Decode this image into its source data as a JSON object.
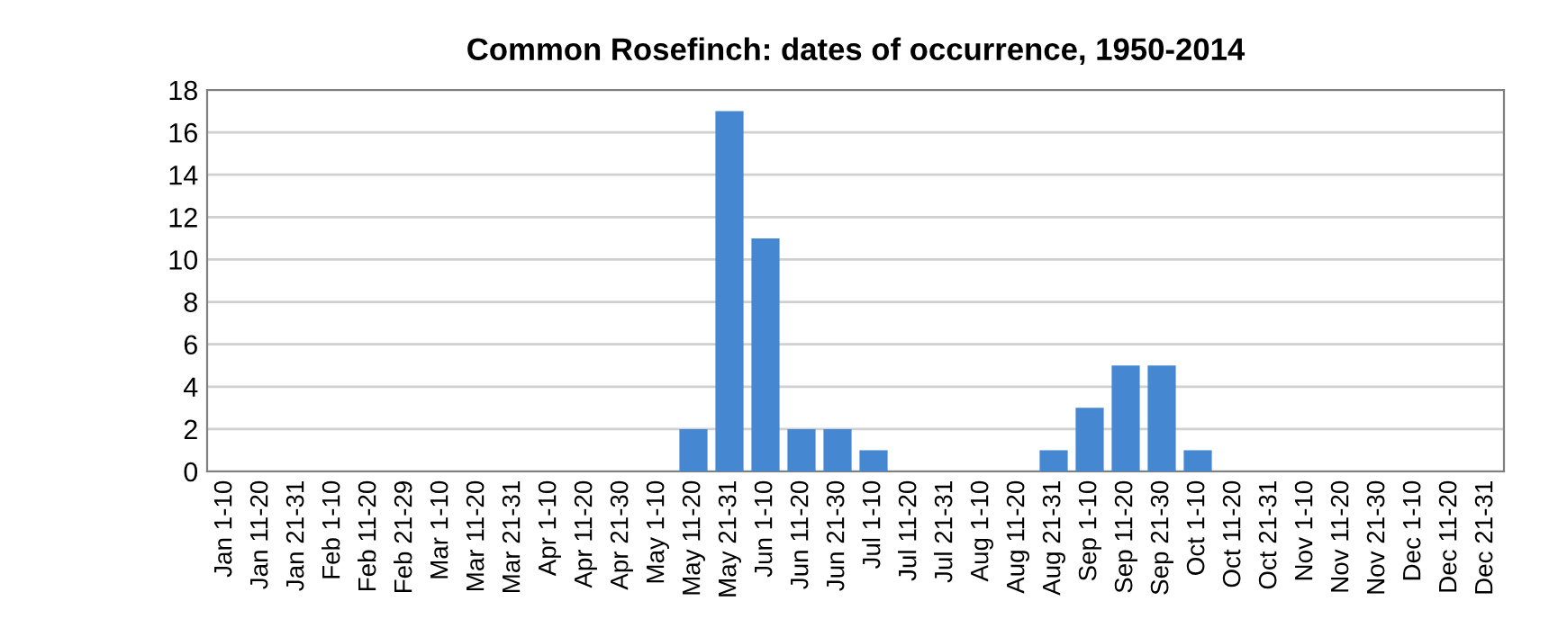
{
  "chart_data": {
    "type": "bar",
    "title": "Common Rosefinch: dates of occurrence, 1950-2014",
    "categories": [
      "Jan 1-10",
      "Jan 11-20",
      "Jan 21-31",
      "Feb 1-10",
      "Feb 11-20",
      "Feb 21-29",
      "Mar 1-10",
      "Mar 11-20",
      "Mar 21-31",
      "Apr 1-10",
      "Apr 11-20",
      "Apr 21-30",
      "May 1-10",
      "May 11-20",
      "May 21-31",
      "Jun 1-10",
      "Jun 11-20",
      "Jun 21-30",
      "Jul 1-10",
      "Jul 11-20",
      "Jul 21-31",
      "Aug 1-10",
      "Aug 11-20",
      "Aug 21-31",
      "Sep 1-10",
      "Sep 11-20",
      "Sep 21-30",
      "Oct 1-10",
      "Oct 11-20",
      "Oct 21-31",
      "Nov 1-10",
      "Nov 11-20",
      "Nov 21-30",
      "Dec 1-10",
      "Dec 11-20",
      "Dec 21-31"
    ],
    "values": [
      0,
      0,
      0,
      0,
      0,
      0,
      0,
      0,
      0,
      0,
      0,
      0,
      0,
      2,
      17,
      11,
      2,
      2,
      1,
      0,
      0,
      0,
      0,
      1,
      3,
      5,
      5,
      1,
      0,
      0,
      0,
      0,
      0,
      0,
      0,
      0
    ],
    "color": "#4587d0",
    "ylim": [
      0,
      18
    ],
    "yticks": [
      0,
      2,
      4,
      6,
      8,
      10,
      12,
      14,
      16,
      18
    ],
    "grid": "y",
    "legend": false
  }
}
